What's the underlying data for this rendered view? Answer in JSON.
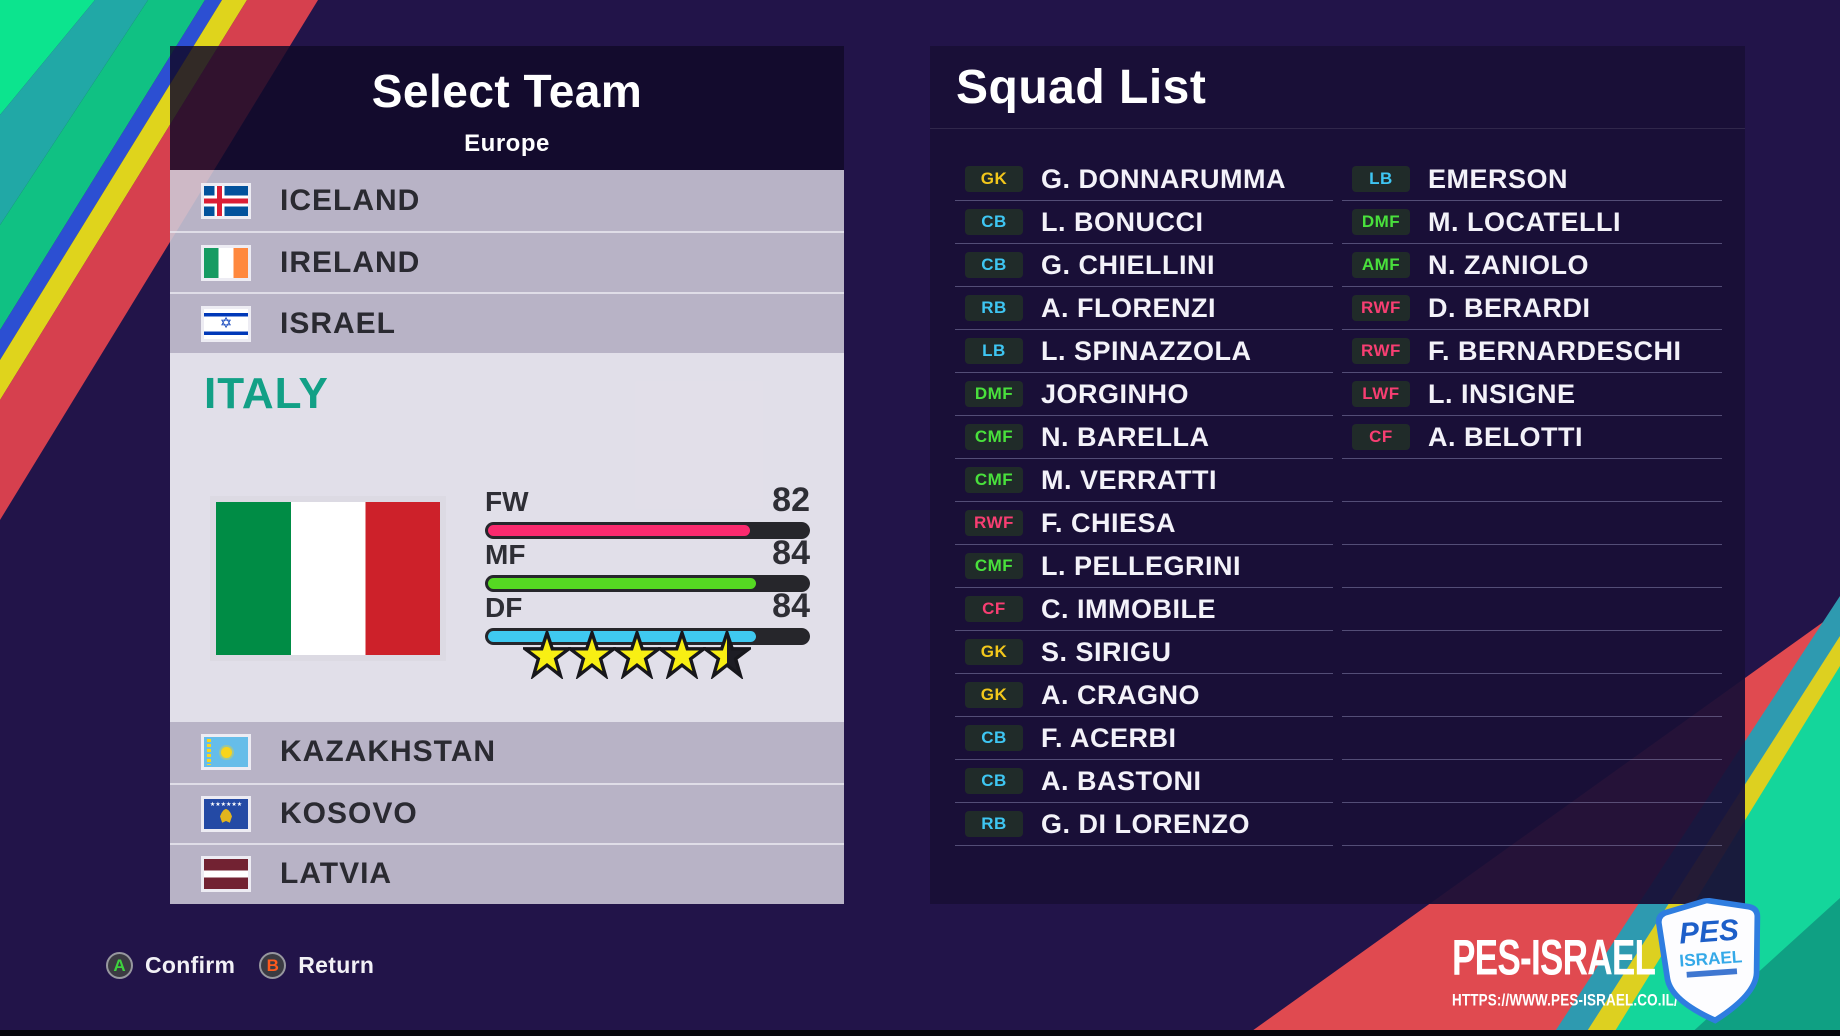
{
  "select_team": {
    "title": "Select Team",
    "region": "Europe",
    "teams_above": [
      {
        "name": "ICELAND",
        "flag": "iceland"
      },
      {
        "name": "IRELAND",
        "flag": "ireland"
      },
      {
        "name": "ISRAEL",
        "flag": "israel"
      }
    ],
    "selected_team": {
      "name": "ITALY",
      "flag": "italy",
      "stats": [
        {
          "label": "FW",
          "value": 82
        },
        {
          "label": "MF",
          "value": 84
        },
        {
          "label": "DF",
          "value": 84
        }
      ],
      "star_rating": 4.5
    },
    "teams_below": [
      {
        "name": "KAZAKHSTAN",
        "flag": "kazakhstan"
      },
      {
        "name": "KOSOVO",
        "flag": "kosovo"
      },
      {
        "name": "LATVIA",
        "flag": "latvia"
      }
    ]
  },
  "stat_colors": {
    "FW": "#fa2a6e",
    "MF": "#55d922",
    "DF": "#3fc9f0"
  },
  "star_color": "#f8ef13",
  "squad_list": {
    "title": "Squad List",
    "rows_per_column": 16,
    "left_column": [
      {
        "pos": "GK",
        "name": "G. DONNARUMMA"
      },
      {
        "pos": "CB",
        "name": "L. BONUCCI"
      },
      {
        "pos": "CB",
        "name": "G. CHIELLINI"
      },
      {
        "pos": "RB",
        "name": "A. FLORENZI"
      },
      {
        "pos": "LB",
        "name": "L. SPINAZZOLA"
      },
      {
        "pos": "DMF",
        "name": "JORGINHO"
      },
      {
        "pos": "CMF",
        "name": "N. BARELLA"
      },
      {
        "pos": "CMF",
        "name": "M. VERRATTI"
      },
      {
        "pos": "RWF",
        "name": "F. CHIESA"
      },
      {
        "pos": "CMF",
        "name": "L. PELLEGRINI"
      },
      {
        "pos": "CF",
        "name": "C. IMMOBILE"
      },
      {
        "pos": "GK",
        "name": "S. SIRIGU"
      },
      {
        "pos": "GK",
        "name": "A. CRAGNO"
      },
      {
        "pos": "CB",
        "name": "F. ACERBI"
      },
      {
        "pos": "CB",
        "name": "A. BASTONI"
      },
      {
        "pos": "RB",
        "name": "G. DI LORENZO"
      }
    ],
    "right_column": [
      {
        "pos": "LB",
        "name": "EMERSON"
      },
      {
        "pos": "DMF",
        "name": "M. LOCATELLI"
      },
      {
        "pos": "AMF",
        "name": "N. ZANIOLO"
      },
      {
        "pos": "RWF",
        "name": "D. BERARDI"
      },
      {
        "pos": "RWF",
        "name": "F. BERNARDESCHI"
      },
      {
        "pos": "LWF",
        "name": "L. INSIGNE"
      },
      {
        "pos": "CF",
        "name": "A. BELOTTI"
      }
    ]
  },
  "position_colors": {
    "GK": "#f2c71b",
    "CB": "#3ec6f2",
    "RB": "#3ec6f2",
    "LB": "#3ec6f2",
    "DMF": "#49e03c",
    "CMF": "#49e03c",
    "AMF": "#49e03c",
    "RWF": "#f73e72",
    "LWF": "#f73e72",
    "CF": "#f73e72"
  },
  "footer": {
    "buttons": [
      {
        "key": "A",
        "label": "Confirm",
        "key_color": "#3ed33e"
      },
      {
        "key": "B",
        "label": "Return",
        "key_color": "#ff5a1e"
      }
    ]
  },
  "branding": {
    "title": "PES-ISRAEL",
    "url": "HTTPS://WWW.PES-ISRAEL.CO.IL/",
    "shield_line1": "PES",
    "shield_line2": "ISRAEL"
  }
}
